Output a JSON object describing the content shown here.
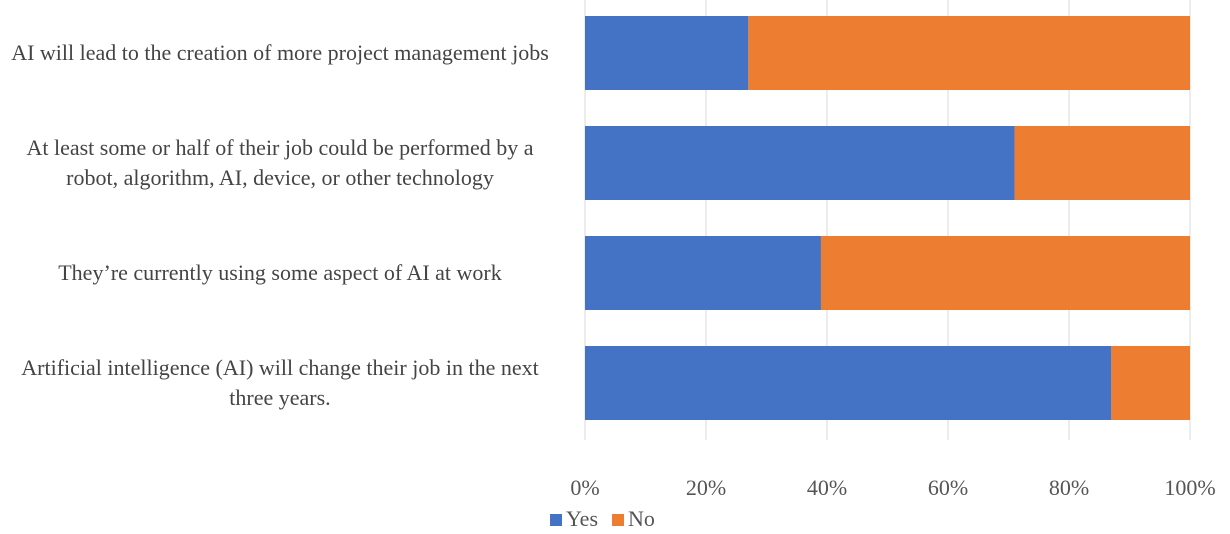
{
  "chart_data": {
    "type": "stacked-bar-horizontal",
    "categories": [
      "AI will lead to the creation of more project management jobs",
      "At least some or half of their job could be performed by a robot, algorithm, AI, device, or other technology",
      "They’re currently using some aspect of AI at work",
      "Artificial intelligence (AI) will change their job in the next three years."
    ],
    "series": [
      {
        "name": "Yes",
        "color": "#4472c4",
        "values": [
          27,
          71,
          39,
          87
        ]
      },
      {
        "name": "No",
        "color": "#ed7d31",
        "values": [
          73,
          29,
          61,
          13
        ]
      }
    ],
    "xlim": [
      0,
      100
    ],
    "xticks": [
      {
        "value": 0,
        "label": "0%"
      },
      {
        "value": 20,
        "label": "20%"
      },
      {
        "value": 40,
        "label": "40%"
      },
      {
        "value": 60,
        "label": "60%"
      },
      {
        "value": 80,
        "label": "80%"
      },
      {
        "value": 100,
        "label": "100%"
      }
    ],
    "grid": true,
    "legend": "bottom"
  }
}
